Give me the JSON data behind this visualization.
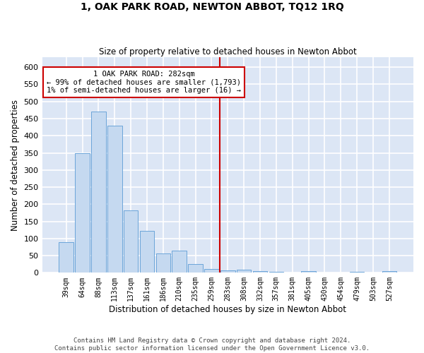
{
  "title": "1, OAK PARK ROAD, NEWTON ABBOT, TQ12 1RQ",
  "subtitle": "Size of property relative to detached houses in Newton Abbot",
  "xlabel": "Distribution of detached houses by size in Newton Abbot",
  "ylabel": "Number of detached properties",
  "bar_color": "#c5d9f0",
  "bar_edge_color": "#5b9bd5",
  "background_color": "#dce6f5",
  "grid_color": "#ffffff",
  "categories": [
    "39sqm",
    "64sqm",
    "88sqm",
    "113sqm",
    "137sqm",
    "161sqm",
    "186sqm",
    "210sqm",
    "235sqm",
    "259sqm",
    "283sqm",
    "308sqm",
    "332sqm",
    "357sqm",
    "381sqm",
    "405sqm",
    "430sqm",
    "454sqm",
    "479sqm",
    "503sqm",
    "527sqm"
  ],
  "values": [
    90,
    348,
    470,
    430,
    183,
    122,
    57,
    65,
    25,
    12,
    7,
    8,
    5,
    2,
    0,
    4,
    0,
    0,
    3,
    0,
    4
  ],
  "vline_index": 10,
  "vline_color": "#cc0000",
  "ylim": [
    0,
    630
  ],
  "yticks": [
    0,
    50,
    100,
    150,
    200,
    250,
    300,
    350,
    400,
    450,
    500,
    550,
    600
  ],
  "annotation_text": "1 OAK PARK ROAD: 282sqm\n← 99% of detached houses are smaller (1,793)\n1% of semi-detached houses are larger (16) →",
  "annotation_box_color": "#ffffff",
  "annotation_box_edge": "#cc0000",
  "footer1": "Contains HM Land Registry data © Crown copyright and database right 2024.",
  "footer2": "Contains public sector information licensed under the Open Government Licence v3.0."
}
